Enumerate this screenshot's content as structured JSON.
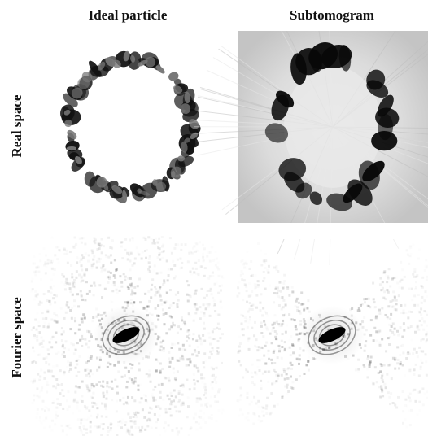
{
  "columns": [
    "Ideal particle",
    "Subtomogram"
  ],
  "rows": [
    "Real space",
    "Fourier space"
  ]
}
